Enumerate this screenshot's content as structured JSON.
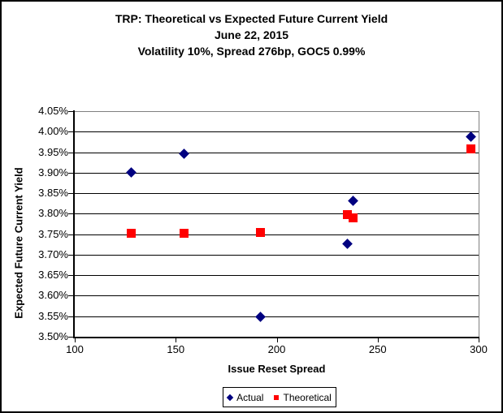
{
  "chart_data": {
    "type": "scatter",
    "title": "TRP: Theoretical vs Expected Future Current Yield",
    "subtitle_date": "June 22, 2015",
    "subtitle_params": "Volatility 10%, Spread 276bp, GOC5 0.99%",
    "xlabel": "Issue Reset Spread",
    "ylabel": "Expected Future Current Yield",
    "xlim": [
      100,
      300
    ],
    "ylim": [
      3.5,
      4.05
    ],
    "x_ticks": [
      100,
      150,
      200,
      250,
      300
    ],
    "y_ticks": [
      3.5,
      3.55,
      3.6,
      3.65,
      3.7,
      3.75,
      3.8,
      3.85,
      3.9,
      3.95,
      4.0,
      4.05
    ],
    "y_tick_suffix": "%",
    "grid": true,
    "legend_position": "bottom",
    "series": [
      {
        "name": "Actual",
        "marker": "diamond",
        "color": "#000080",
        "points": [
          [
            128,
            3.9
          ],
          [
            154,
            3.947
          ],
          [
            192,
            3.549
          ],
          [
            235,
            3.727
          ],
          [
            238,
            3.831
          ],
          [
            296,
            3.988
          ]
        ]
      },
      {
        "name": "Theoretical",
        "marker": "square",
        "color": "#FF0000",
        "points": [
          [
            128,
            3.752
          ],
          [
            154,
            3.752
          ],
          [
            192,
            3.755
          ],
          [
            235,
            3.797
          ],
          [
            238,
            3.79
          ],
          [
            296,
            3.958
          ]
        ]
      }
    ],
    "colors": {
      "axis": "#000000",
      "gridline": "#000000",
      "plot_border": "#808080",
      "text": "#000000",
      "background": "#FFFFFF"
    }
  }
}
